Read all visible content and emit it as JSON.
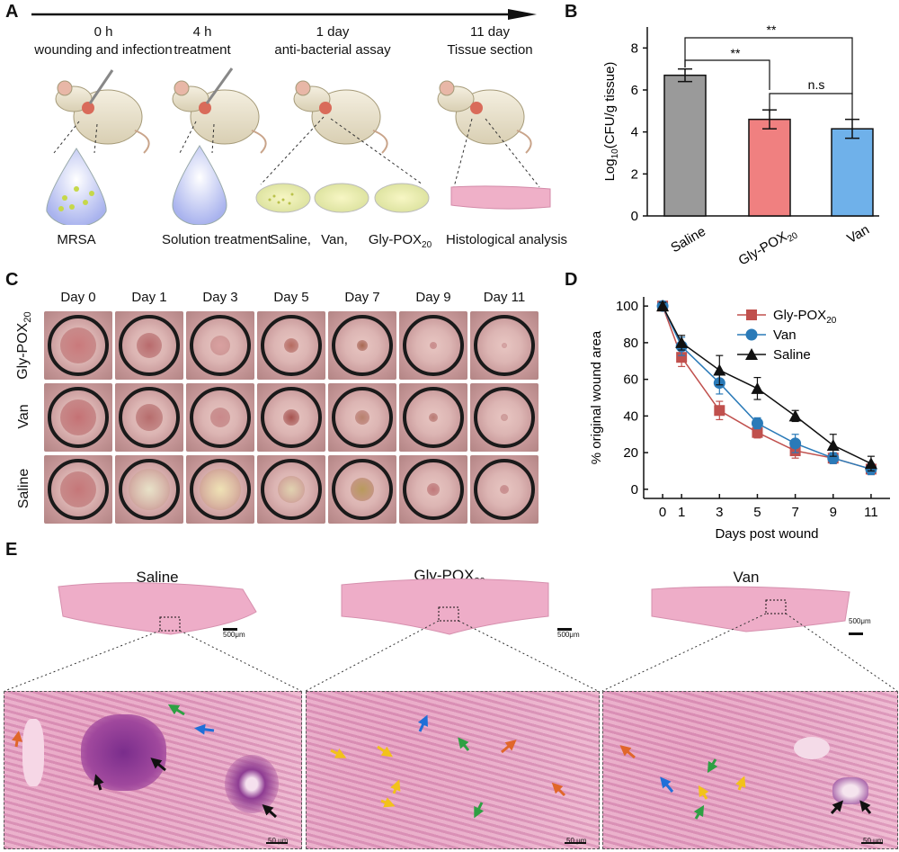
{
  "panels": {
    "A": {
      "letter": "A",
      "timeline": [
        {
          "time": "0 h",
          "event": "wounding and infection"
        },
        {
          "time": "4 h",
          "event": "treatment"
        },
        {
          "time": "1 day",
          "event": "anti-bacterial assay"
        },
        {
          "time": "11 day",
          "event": "Tissue section"
        }
      ],
      "captions": {
        "mrsa": "MRSA",
        "solution": "Solution treatment",
        "saline": "Saline,",
        "van": "Van,",
        "gly": "Gly-POX",
        "gly_sub": "20",
        "histo": "Histological analysis"
      }
    },
    "B": {
      "letter": "B",
      "sig_1": "**",
      "sig_2": "**",
      "sig_3": "n.s",
      "ylabel_pre": "Log",
      "ylabel_sub": "10",
      "ylabel_post": "(CFU/g tissue)"
    },
    "C": {
      "letter": "C",
      "days": [
        "Day 0",
        "Day 1",
        "Day 3",
        "Day 5",
        "Day 7",
        "Day 9",
        "Day 11"
      ],
      "rows": [
        {
          "label": "Gly-POX",
          "sub": "20"
        },
        {
          "label": "Van",
          "sub": ""
        },
        {
          "label": "Saline",
          "sub": ""
        }
      ]
    },
    "D": {
      "letter": "D",
      "xlabel": "Days post wound",
      "ylabel": "% original wound area"
    },
    "E": {
      "letter": "E",
      "titles": [
        {
          "label": "Saline",
          "sub": ""
        },
        {
          "label": "Gly-POX",
          "sub": "20"
        },
        {
          "label": "Van",
          "sub": ""
        }
      ],
      "scale_overview": "500μm",
      "scale_zoom": "50 μm"
    }
  },
  "chart_data": [
    {
      "type": "bar",
      "categories": [
        "Saline",
        "Gly-POX20",
        "Van"
      ],
      "values": [
        6.7,
        4.6,
        4.15
      ],
      "errors": [
        0.3,
        0.45,
        0.45
      ],
      "colors": [
        "#9a9a9a",
        "#f08080",
        "#6fb1ea"
      ],
      "ylim": [
        0,
        9
      ],
      "yticks": [
        0,
        2,
        4,
        6,
        8
      ]
    },
    {
      "type": "line",
      "x": [
        0,
        1,
        3,
        5,
        7,
        9,
        11
      ],
      "xticks": [
        0,
        1,
        3,
        5,
        7,
        9,
        11
      ],
      "ylim": [
        -5,
        105
      ],
      "yticks": [
        0,
        20,
        40,
        60,
        80,
        100
      ],
      "series": [
        {
          "name": "Gly-POX20",
          "label": "Gly-POX",
          "sub": "20",
          "marker": "square",
          "color": "#c0504d",
          "values": [
            100,
            72,
            43,
            31,
            21,
            17,
            11
          ],
          "errors": [
            2,
            5,
            5,
            3,
            4,
            3,
            3
          ]
        },
        {
          "name": "Van",
          "label": "Van",
          "sub": "",
          "marker": "circle",
          "color": "#2a7ab8",
          "values": [
            100,
            78,
            58,
            36,
            25,
            17,
            11
          ],
          "errors": [
            2,
            5,
            6,
            3,
            5,
            3,
            3
          ]
        },
        {
          "name": "Saline",
          "label": "Saline",
          "sub": "",
          "marker": "triangle",
          "color": "#111111",
          "values": [
            100,
            80,
            65,
            55,
            40,
            24,
            14
          ],
          "errors": [
            2,
            4,
            8,
            6,
            3,
            6,
            4
          ]
        }
      ]
    }
  ]
}
